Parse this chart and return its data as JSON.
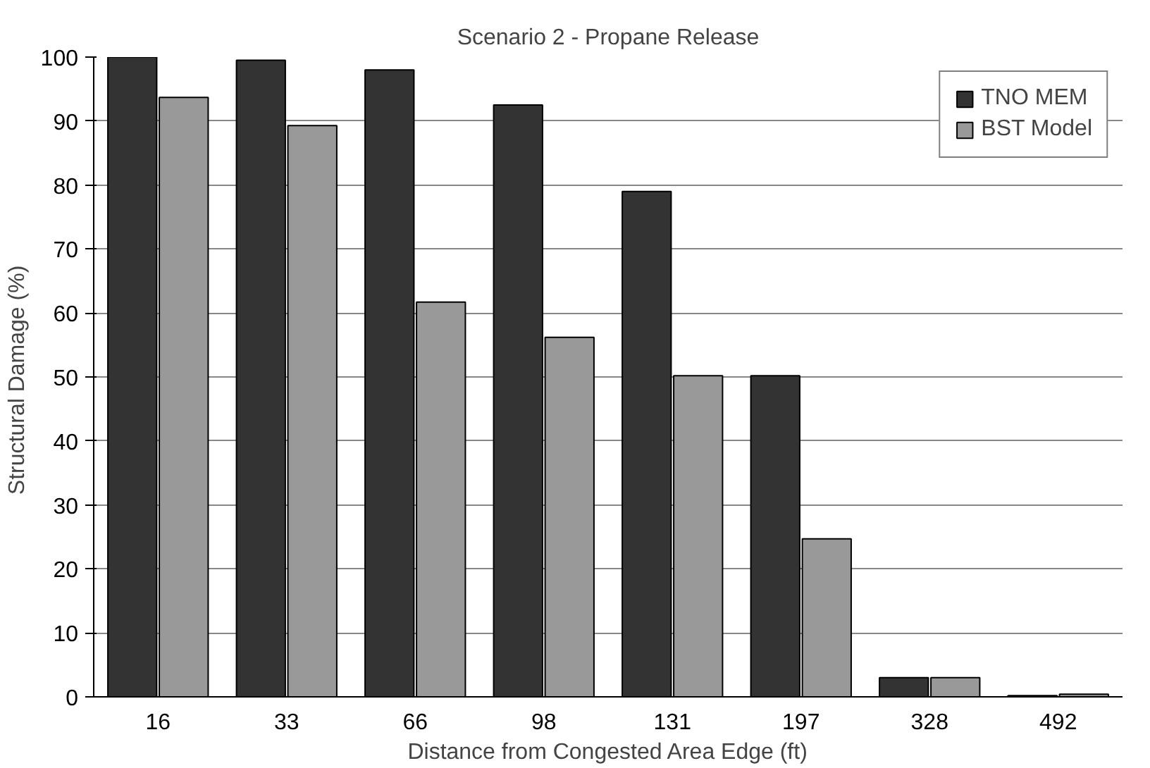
{
  "chart_data": {
    "type": "bar",
    "title": "Scenario 2 - Propane Release",
    "xlabel": "Distance from Congested Area Edge (ft)",
    "ylabel": "Structural Damage  (%)",
    "categories": [
      "16",
      "33",
      "66",
      "98",
      "131",
      "197",
      "328",
      "492"
    ],
    "series": [
      {
        "name": "TNO MEM",
        "color": "#333333",
        "values": [
          100,
          99.5,
          98,
          92.5,
          79,
          50.2,
          3,
          0.2
        ]
      },
      {
        "name": "BST Model",
        "color": "#999999",
        "values": [
          93.7,
          89.3,
          61.7,
          56.2,
          50.2,
          24.7,
          3,
          0.4
        ]
      }
    ],
    "ylim": [
      0,
      100
    ],
    "yticks": [
      0,
      10,
      20,
      30,
      40,
      50,
      60,
      70,
      80,
      90,
      100
    ],
    "grid": "y",
    "legend": "top right"
  }
}
